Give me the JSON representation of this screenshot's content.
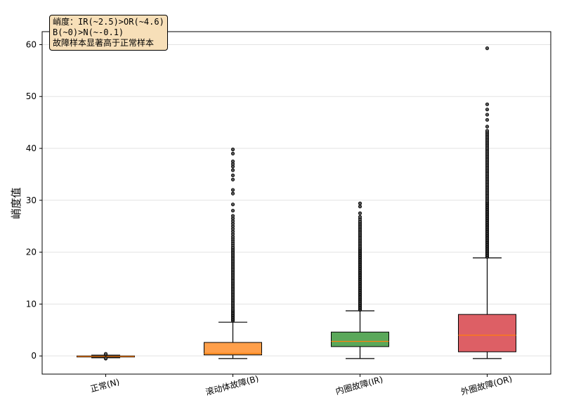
{
  "chart_data": {
    "type": "box",
    "title": "",
    "xlabel": "",
    "ylabel": "峭度值",
    "ylim": [
      -3.5,
      62.5
    ],
    "yticks": [
      0,
      10,
      20,
      30,
      40,
      50,
      60
    ],
    "grid": "y",
    "categories": [
      "正常(N)",
      "滚动体故障(B)",
      "内圈故障(IR)",
      "外圈故障(OR)"
    ],
    "boxes": [
      {
        "category": "正常(N)",
        "color": "#ff7f0e",
        "whisker_low": -0.35,
        "q1": -0.2,
        "median": -0.1,
        "q3": 0.0,
        "whisker_high": 0.15,
        "outliers": [
          -0.5,
          -0.45,
          0.3,
          0.4
        ]
      },
      {
        "category": "滚动体故障(B)",
        "color": "#ff9f4a",
        "whisker_low": -0.5,
        "q1": 0.2,
        "median": 0.5,
        "q3": 2.6,
        "whisker_high": 6.5,
        "outliers": [
          6.8,
          7.0,
          7.2,
          7.4,
          7.6,
          7.8,
          8.0,
          8.2,
          8.4,
          8.6,
          8.8,
          9.0,
          9.3,
          9.6,
          9.9,
          10.2,
          10.5,
          10.8,
          11.1,
          11.4,
          11.7,
          12.0,
          12.3,
          12.6,
          12.9,
          13.2,
          13.5,
          13.8,
          14.1,
          14.4,
          14.7,
          15.0,
          15.3,
          15.6,
          15.9,
          16.2,
          16.5,
          16.8,
          17.1,
          17.4,
          17.7,
          18.0,
          18.3,
          18.6,
          18.9,
          19.2,
          19.5,
          19.8,
          20.1,
          20.4,
          20.7,
          21.0,
          21.4,
          21.8,
          22.2,
          22.6,
          23.0,
          23.5,
          24.0,
          24.5,
          25.0,
          25.5,
          26.0,
          26.5,
          27.0,
          28.0,
          29.2,
          31.3,
          32.0,
          34.0,
          34.8,
          35.8,
          36.5,
          37.0,
          37.5,
          39.0,
          39.8
        ]
      },
      {
        "category": "内圈故障(IR)",
        "color": "#5aa85a",
        "whisker_low": -0.5,
        "q1": 1.8,
        "median": 2.8,
        "q3": 4.6,
        "whisker_high": 8.7,
        "outliers": [
          8.9,
          9.1,
          9.3,
          9.5,
          9.7,
          9.9,
          10.1,
          10.3,
          10.5,
          10.7,
          10.9,
          11.1,
          11.3,
          11.5,
          11.7,
          11.9,
          12.1,
          12.3,
          12.5,
          12.7,
          12.9,
          13.1,
          13.3,
          13.5,
          13.7,
          13.9,
          14.1,
          14.3,
          14.5,
          14.7,
          14.9,
          15.1,
          15.3,
          15.5,
          15.7,
          15.9,
          16.1,
          16.3,
          16.5,
          16.7,
          16.9,
          17.1,
          17.3,
          17.5,
          17.7,
          17.9,
          18.1,
          18.3,
          18.5,
          18.7,
          18.9,
          19.1,
          19.3,
          19.5,
          19.7,
          19.9,
          20.1,
          20.3,
          20.5,
          20.7,
          20.9,
          21.2,
          21.5,
          21.8,
          22.1,
          22.4,
          22.7,
          23.0,
          23.3,
          23.6,
          23.9,
          24.2,
          24.5,
          24.8,
          25.1,
          25.4,
          25.7,
          26.0,
          26.4,
          26.8,
          27.5,
          28.8,
          29.4
        ]
      },
      {
        "category": "外圈故障(OR)",
        "color": "#dd5f65",
        "whisker_low": -0.5,
        "q1": 0.8,
        "median": 4.0,
        "q3": 8.0,
        "whisker_high": 18.9,
        "outliers": [
          19.1,
          19.3,
          19.5,
          19.7,
          19.9,
          20.1,
          20.3,
          20.5,
          20.7,
          20.9,
          21.1,
          21.3,
          21.5,
          21.7,
          21.9,
          22.1,
          22.3,
          22.5,
          22.7,
          22.9,
          23.1,
          23.3,
          23.5,
          23.7,
          23.9,
          24.1,
          24.3,
          24.5,
          24.7,
          24.9,
          25.1,
          25.3,
          25.5,
          25.7,
          25.9,
          26.1,
          26.3,
          26.5,
          26.7,
          26.9,
          27.1,
          27.3,
          27.5,
          27.7,
          27.9,
          28.1,
          28.3,
          28.5,
          28.7,
          28.9,
          29.1,
          29.3,
          29.5,
          29.7,
          29.9,
          30.2,
          30.5,
          30.8,
          31.1,
          31.4,
          31.7,
          32.0,
          32.3,
          32.6,
          32.9,
          33.2,
          33.5,
          33.8,
          34.1,
          34.4,
          34.7,
          35.0,
          35.3,
          35.6,
          35.9,
          36.2,
          36.5,
          36.8,
          37.1,
          37.4,
          37.7,
          38.0,
          38.3,
          38.6,
          38.9,
          39.2,
          39.5,
          39.8,
          40.1,
          40.4,
          40.7,
          41.0,
          41.3,
          41.6,
          41.9,
          42.2,
          42.5,
          42.8,
          43.1,
          43.4,
          44.2,
          45.5,
          46.5,
          47.5,
          48.5,
          59.3
        ]
      }
    ],
    "annotation": [
      "峭度：IR(~2.5)>OR(~4.6)",
      "B(~0)>N(~-0.1)",
      "故障样本显著高于正常样本"
    ]
  }
}
